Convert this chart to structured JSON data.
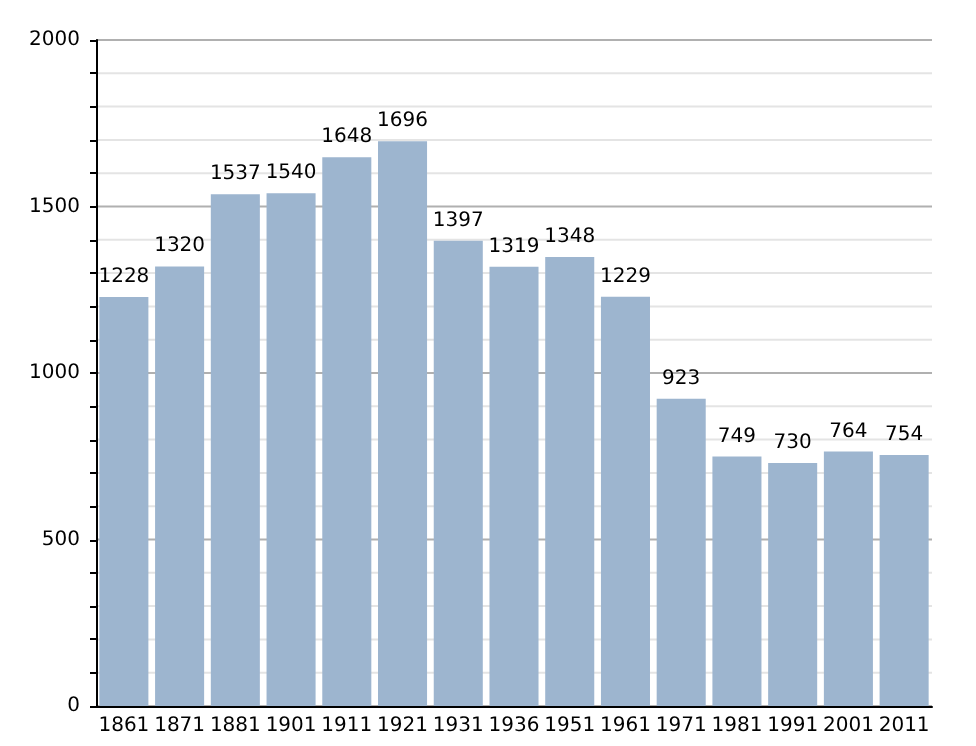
{
  "chart_data": {
    "type": "bar",
    "categories": [
      "1861",
      "1871",
      "1881",
      "1901",
      "1911",
      "1921",
      "1931",
      "1936",
      "1951",
      "1961",
      "1971",
      "1981",
      "1991",
      "2001",
      "2011"
    ],
    "values": [
      1228,
      1320,
      1537,
      1540,
      1648,
      1696,
      1397,
      1319,
      1348,
      1229,
      923,
      749,
      730,
      764,
      754
    ],
    "color": "#9db5cf",
    "data_labels": true,
    "grid": "y",
    "ylim": [
      0,
      2000
    ],
    "yticks": [
      0,
      {
        "value": 100,
        "label": null
      },
      {
        "value": 200,
        "label": null
      },
      {
        "value": 300,
        "label": null
      },
      {
        "value": 400,
        "label": null
      },
      500,
      {
        "value": 600,
        "label": null
      },
      {
        "value": 700,
        "label": null
      },
      {
        "value": 800,
        "label": null
      },
      {
        "value": 900,
        "label": null
      },
      1000,
      {
        "value": 1100,
        "label": null
      },
      {
        "value": 1200,
        "label": null
      },
      {
        "value": 1300,
        "label": null
      },
      {
        "value": 1400,
        "label": null
      },
      1500,
      {
        "value": 1600,
        "label": null
      },
      {
        "value": 1700,
        "label": null
      },
      {
        "value": 1800,
        "label": null
      },
      {
        "value": 1900,
        "label": null
      },
      2000
    ]
  }
}
